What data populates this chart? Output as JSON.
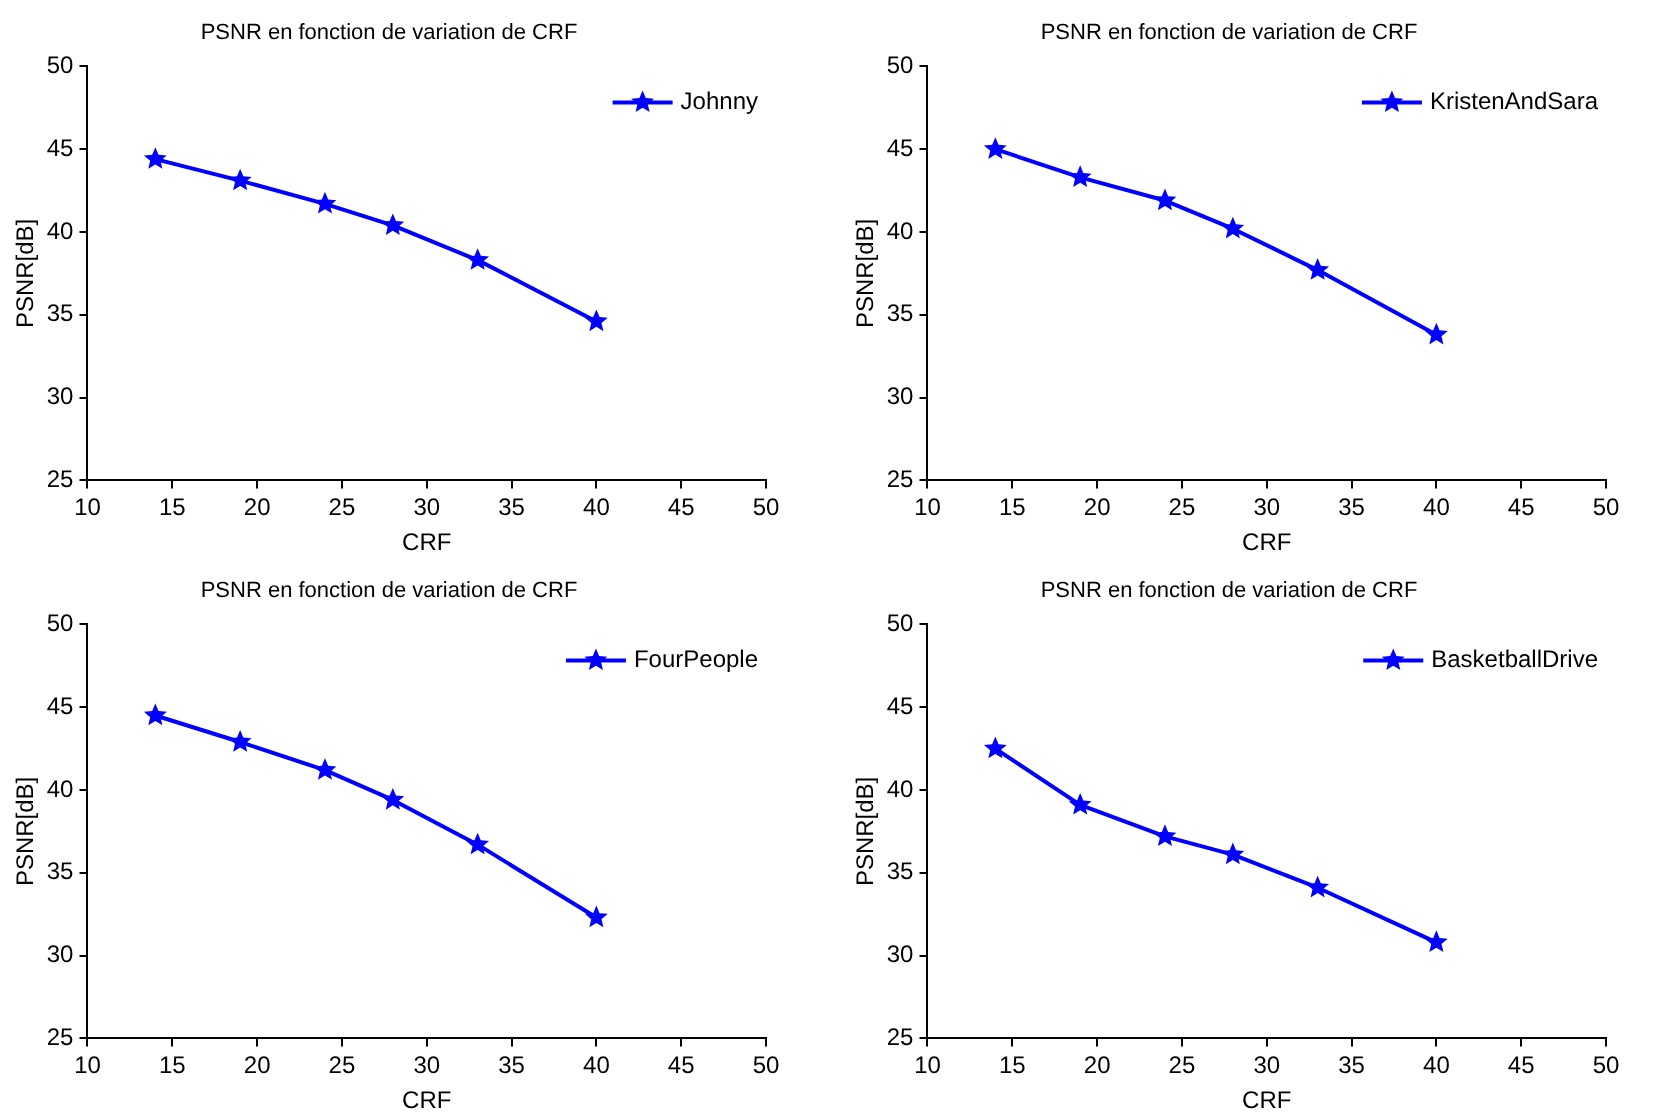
{
  "chart_data": [
    {
      "type": "line",
      "title": "PSNR en fonction de variation de CRF",
      "xlabel": "CRF",
      "ylabel": "PSNR[dB]",
      "x": [
        14,
        19,
        24,
        28,
        33,
        40
      ],
      "series": [
        {
          "name": "Johnny",
          "color": "#0000ff",
          "values": [
            44.4,
            43.1,
            41.7,
            40.4,
            38.3,
            34.6
          ]
        }
      ],
      "xlim": [
        10,
        50
      ],
      "xticks": [
        10,
        15,
        20,
        25,
        30,
        35,
        40,
        45,
        50
      ],
      "ylim": [
        25,
        50
      ],
      "yticks": [
        25,
        30,
        35,
        40,
        45,
        50
      ],
      "grid": false,
      "legend": "top right",
      "marker": "star",
      "line_style": "solid"
    },
    {
      "type": "line",
      "title": "PSNR en fonction de variation de CRF",
      "xlabel": "CRF",
      "ylabel": "PSNR[dB]",
      "x": [
        14,
        19,
        24,
        28,
        33,
        40
      ],
      "series": [
        {
          "name": "KristenAndSara",
          "color": "#0000ff",
          "values": [
            45.0,
            43.3,
            41.9,
            40.2,
            37.7,
            33.8
          ]
        }
      ],
      "xlim": [
        10,
        50
      ],
      "xticks": [
        10,
        15,
        20,
        25,
        30,
        35,
        40,
        45,
        50
      ],
      "ylim": [
        25,
        50
      ],
      "yticks": [
        25,
        30,
        35,
        40,
        45,
        50
      ],
      "grid": false,
      "legend": "top right",
      "marker": "star",
      "line_style": "solid"
    },
    {
      "type": "line",
      "title": "PSNR en fonction de variation de CRF",
      "xlabel": "CRF",
      "ylabel": "PSNR[dB]",
      "x": [
        14,
        19,
        24,
        28,
        33,
        40
      ],
      "series": [
        {
          "name": "FourPeople",
          "color": "#0000ff",
          "values": [
            44.5,
            42.9,
            41.2,
            39.4,
            36.7,
            32.3
          ]
        }
      ],
      "xlim": [
        10,
        50
      ],
      "xticks": [
        10,
        15,
        20,
        25,
        30,
        35,
        40,
        45,
        50
      ],
      "ylim": [
        25,
        50
      ],
      "yticks": [
        25,
        30,
        35,
        40,
        45,
        50
      ],
      "grid": false,
      "legend": "top right",
      "marker": "star",
      "line_style": "solid"
    },
    {
      "type": "line",
      "title": "PSNR en fonction de variation de CRF",
      "xlabel": "CRF",
      "ylabel": "PSNR[dB]",
      "x": [
        14,
        19,
        24,
        28,
        33,
        40
      ],
      "series": [
        {
          "name": "BasketballDrive",
          "color": "#0000ff",
          "values": [
            42.5,
            39.1,
            37.2,
            36.1,
            34.1,
            30.8
          ]
        }
      ],
      "xlim": [
        10,
        50
      ],
      "xticks": [
        10,
        15,
        20,
        25,
        30,
        35,
        40,
        45,
        50
      ],
      "ylim": [
        25,
        50
      ],
      "yticks": [
        25,
        30,
        35,
        40,
        45,
        50
      ],
      "grid": false,
      "legend": "top right",
      "marker": "star",
      "line_style": "solid"
    }
  ]
}
